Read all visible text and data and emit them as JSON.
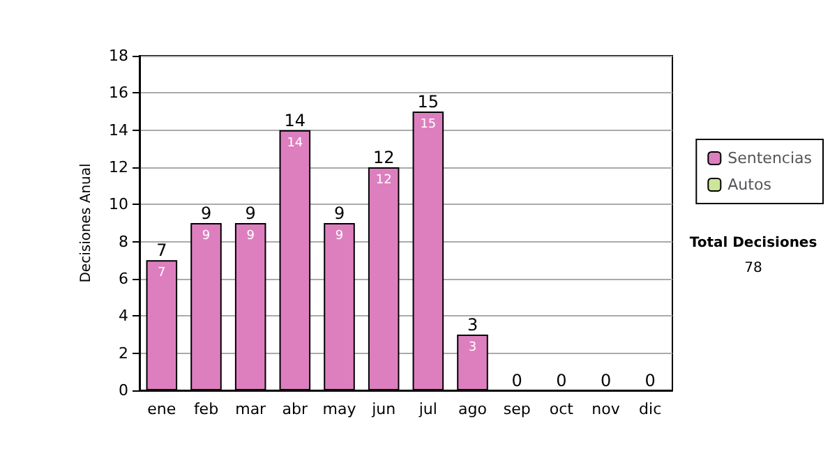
{
  "chart_data": {
    "type": "bar",
    "stacked": true,
    "ylabel": "Decisiones Anual",
    "categories": [
      "ene",
      "feb",
      "mar",
      "abr",
      "may",
      "jun",
      "jul",
      "ago",
      "sep",
      "oct",
      "nov",
      "dic"
    ],
    "series": [
      {
        "name": "Sentencias",
        "color": "#dd7fbf",
        "values": [
          7,
          9,
          9,
          14,
          9,
          12,
          15,
          3,
          0,
          0,
          0,
          0
        ],
        "value_labels": [
          "7",
          "9",
          "9",
          "14",
          "9",
          "12",
          "15",
          "3",
          null,
          null,
          null,
          null
        ]
      },
      {
        "name": "Autos",
        "color": "#cce699",
        "values": [
          0,
          0,
          0,
          0,
          0,
          0,
          0,
          0,
          0,
          0,
          0,
          0
        ]
      }
    ],
    "totals": [
      "7",
      "9",
      "9",
      "14",
      "9",
      "12",
      "15",
      "3",
      "0",
      "0",
      "0",
      "0"
    ],
    "ylim": [
      0,
      18
    ],
    "yticks": [
      0,
      2,
      4,
      6,
      8,
      10,
      12,
      14,
      16,
      18
    ],
    "grid": "y",
    "legend": "right",
    "annotations": [
      "Total Decisiones",
      "78"
    ]
  }
}
